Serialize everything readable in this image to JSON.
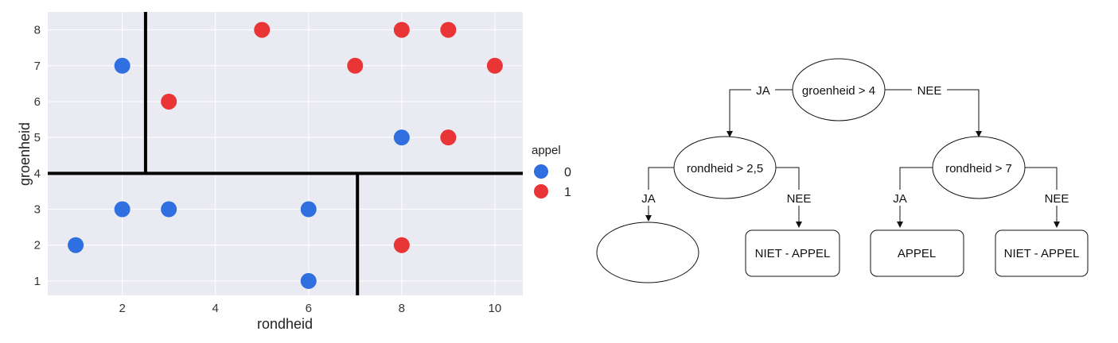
{
  "chart_data": {
    "type": "scatter",
    "xlabel": "rondheid",
    "ylabel": "groenheid",
    "xlim": [
      0.4,
      10.6
    ],
    "ylim": [
      0.6,
      8.5
    ],
    "xticks": [
      2,
      4,
      6,
      8,
      10
    ],
    "yticks": [
      1,
      2,
      3,
      4,
      5,
      6,
      7,
      8
    ],
    "grid": true,
    "legend": {
      "title": "appel",
      "placement": "outside-right",
      "entries": [
        {
          "label": "0",
          "color": "#2f6fe0"
        },
        {
          "label": "1",
          "color": "#e93535"
        }
      ]
    },
    "series": [
      {
        "name": "0",
        "color": "#2f6fe0",
        "points": [
          [
            1,
            2
          ],
          [
            2,
            3
          ],
          [
            2,
            7
          ],
          [
            3,
            3
          ],
          [
            6,
            3
          ],
          [
            6,
            1
          ],
          [
            8,
            5
          ]
        ]
      },
      {
        "name": "1",
        "color": "#e93535",
        "points": [
          [
            3,
            6
          ],
          [
            5,
            8
          ],
          [
            7,
            7
          ],
          [
            8,
            8
          ],
          [
            9,
            8
          ],
          [
            10,
            7
          ],
          [
            9,
            5
          ],
          [
            8,
            2
          ]
        ]
      }
    ],
    "split_lines": [
      {
        "orientation": "horizontal",
        "y": 4,
        "x_from": 0.4,
        "x_to": 10.6
      },
      {
        "orientation": "vertical",
        "x": 2.5,
        "y_from": 4,
        "y_to": 8.5
      },
      {
        "orientation": "vertical",
        "x": 7.05,
        "y_from": 0.6,
        "y_to": 4
      }
    ]
  },
  "tree": {
    "root": {
      "label": "groenheid > 4",
      "yes_label": "JA",
      "no_label": "NEE"
    },
    "left": {
      "label": "rondheid > 2,5",
      "yes_label": "JA",
      "no_label": "NEE"
    },
    "right": {
      "label": "rondheid > 7",
      "yes_label": "JA",
      "no_label": "NEE"
    },
    "leaves": {
      "left_yes": "",
      "left_no": "NIET - APPEL",
      "right_yes": "APPEL",
      "right_no": "NIET - APPEL"
    }
  }
}
